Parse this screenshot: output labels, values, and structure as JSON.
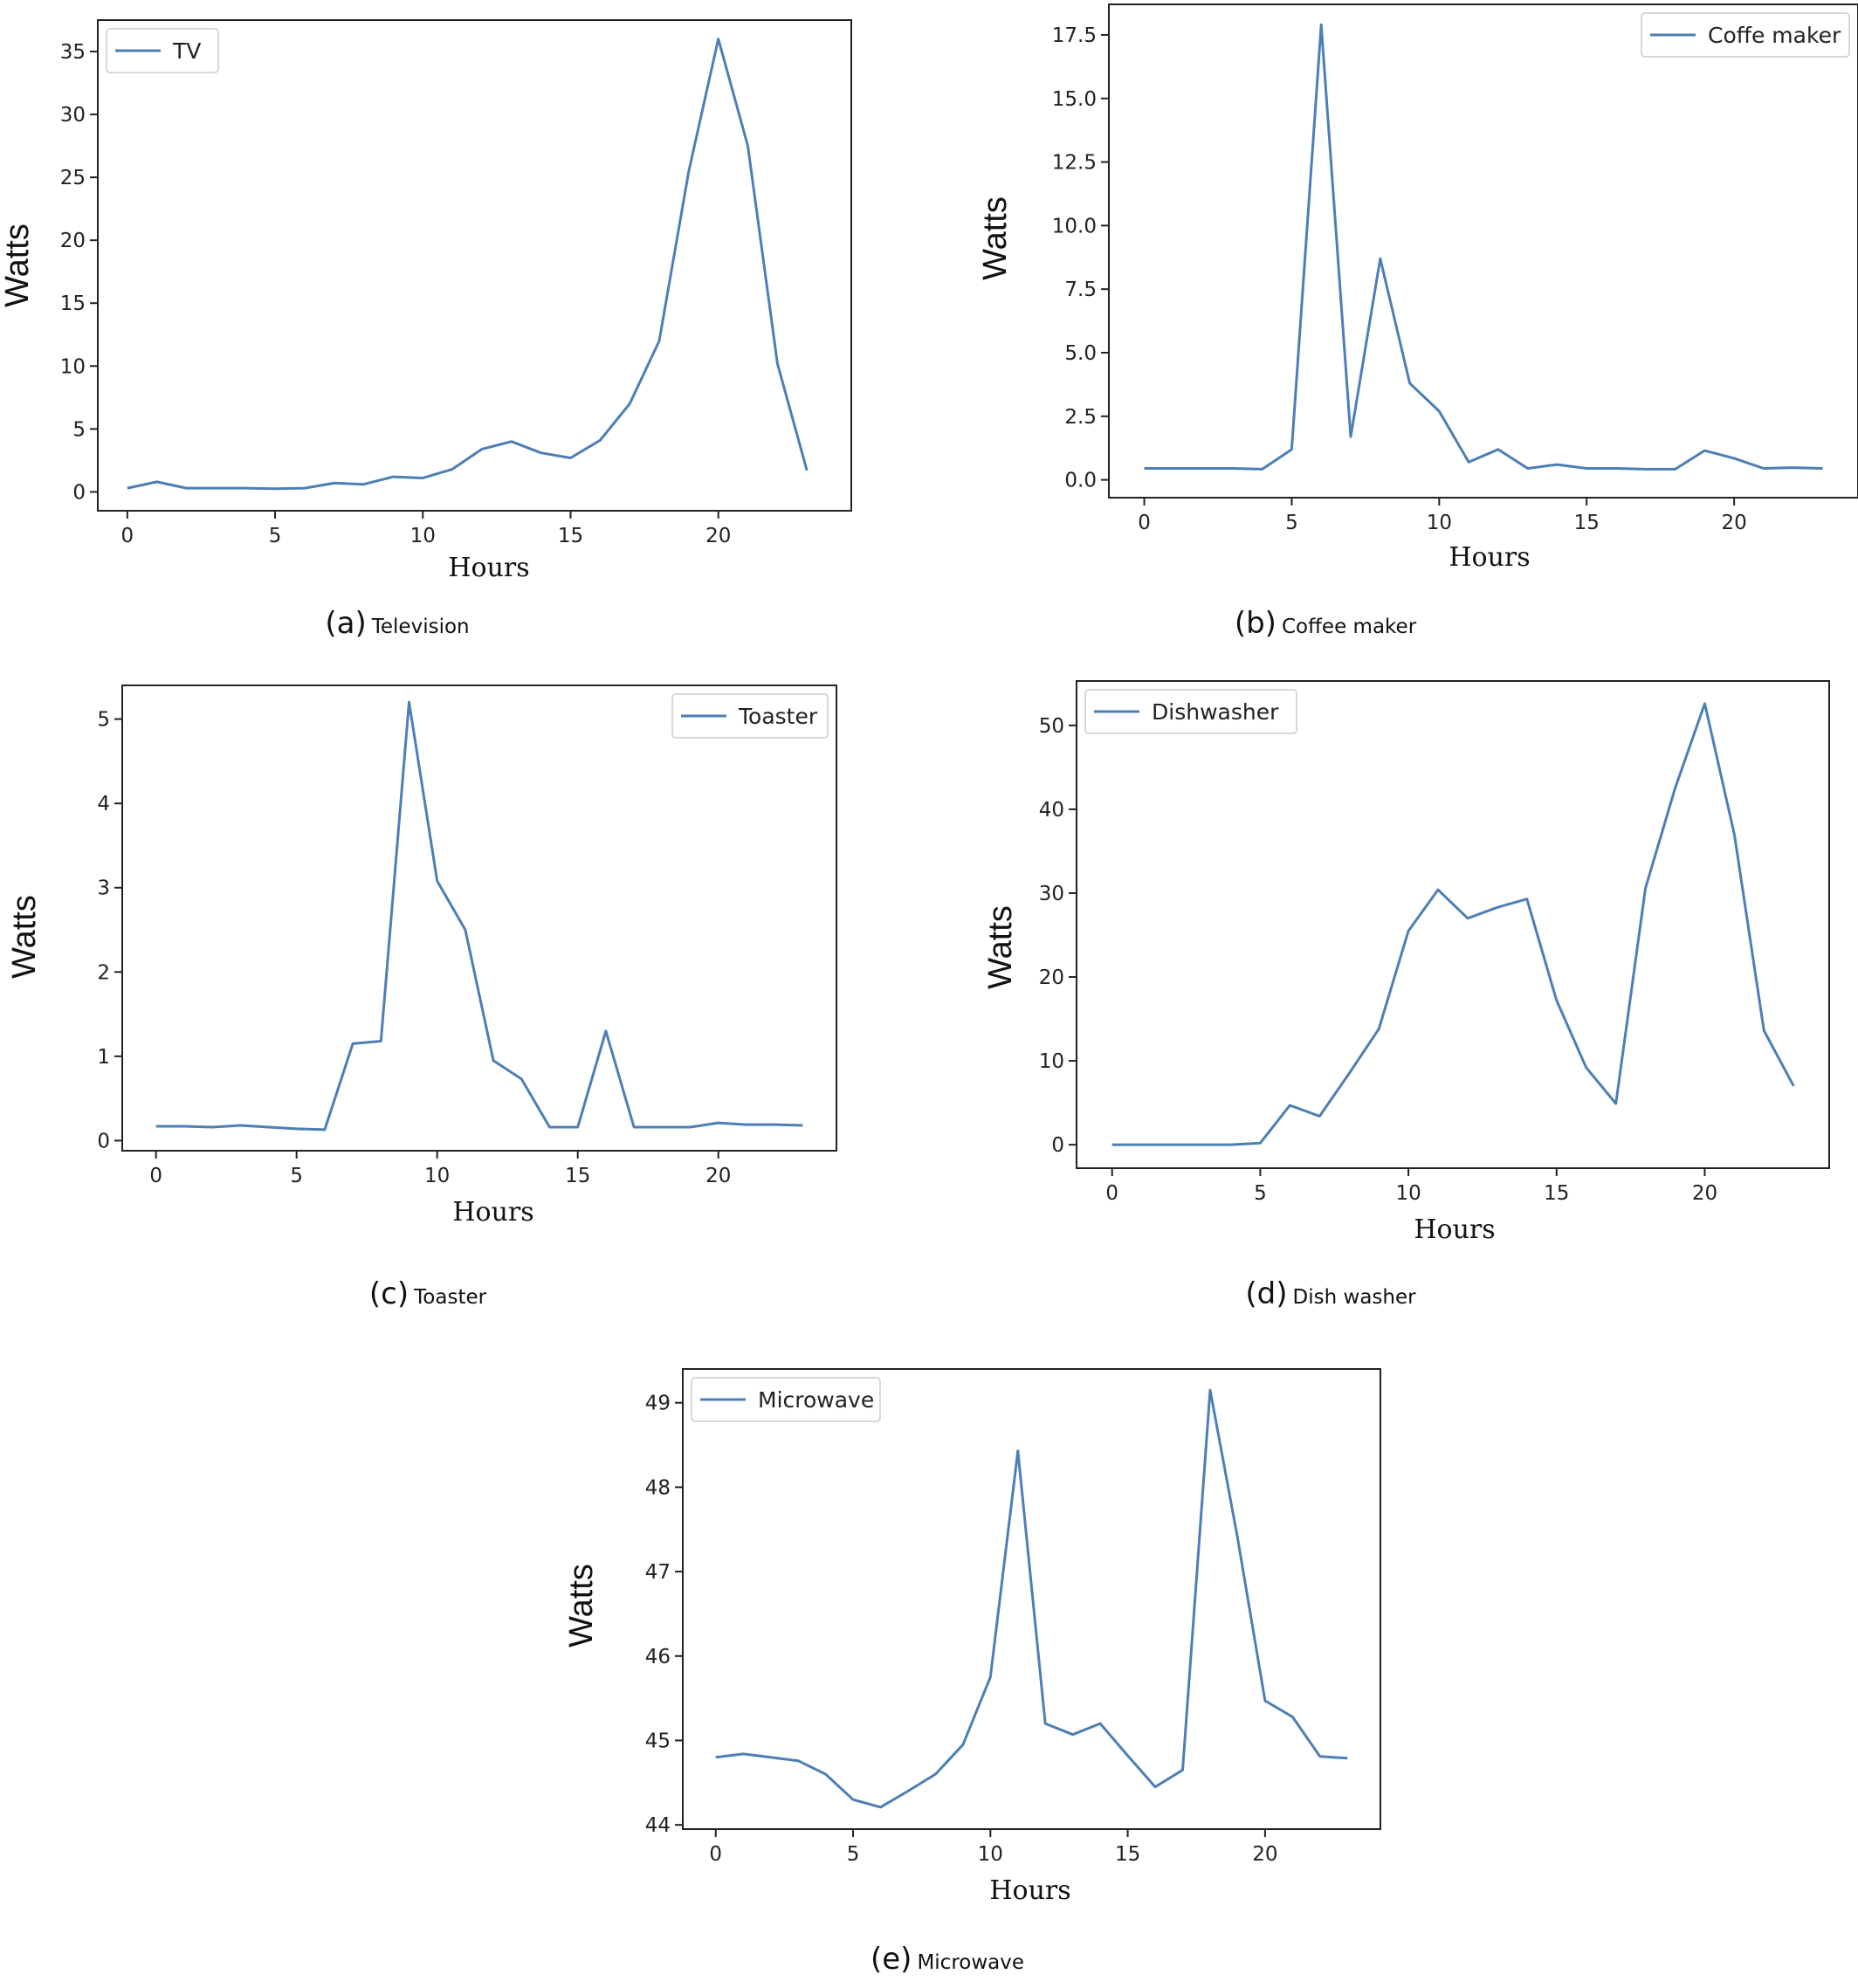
{
  "chart_data": [
    {
      "type": "line",
      "caption_label": "(a)",
      "caption_text": "Television",
      "xlabel": "Hours",
      "ylabel": "Watts",
      "xlim": [
        -1,
        24.5
      ],
      "ylim": [
        -1.5,
        37.5
      ],
      "xticks": [
        0,
        5,
        10,
        15,
        20
      ],
      "yticks": [
        0,
        5,
        10,
        15,
        20,
        25,
        30,
        35
      ],
      "ytick_labels": [
        "0",
        "5",
        "10",
        "15",
        "20",
        "25",
        "30",
        "35"
      ],
      "legend_position": "top-left",
      "series": [
        {
          "name": "TV",
          "color": "#4c7fb4",
          "x": [
            0,
            1,
            2,
            3,
            4,
            5,
            6,
            7,
            8,
            9,
            10,
            11,
            12,
            13,
            14,
            15,
            16,
            17,
            18,
            19,
            20,
            21,
            22,
            23
          ],
          "y": [
            0.3,
            0.8,
            0.3,
            0.3,
            0.3,
            0.25,
            0.3,
            0.7,
            0.6,
            1.2,
            1.1,
            1.8,
            3.4,
            4.0,
            3.1,
            2.7,
            4.1,
            7.0,
            12.0,
            25.5,
            36.0,
            27.5,
            10.2,
            1.7
          ]
        }
      ]
    },
    {
      "type": "line",
      "caption_label": "(b)",
      "caption_text": "Coffee maker",
      "xlabel": "Hours",
      "ylabel": "Watts",
      "xlim": [
        -1.2,
        24.2
      ],
      "ylim": [
        -0.7,
        18.7
      ],
      "xticks": [
        0,
        5,
        10,
        15,
        20
      ],
      "yticks": [
        0,
        2.5,
        5,
        7.5,
        10,
        12.5,
        15,
        17.5
      ],
      "ytick_labels": [
        "0.0",
        "2.5",
        "5.0",
        "7.5",
        "10.0",
        "12.5",
        "15.0",
        "17.5"
      ],
      "legend_position": "top-right",
      "series": [
        {
          "name": "Coffe maker",
          "color": "#4c7fb4",
          "x": [
            0,
            1,
            2,
            3,
            4,
            5,
            6,
            7,
            8,
            9,
            10,
            11,
            12,
            13,
            14,
            15,
            16,
            17,
            18,
            19,
            20,
            21,
            22,
            23
          ],
          "y": [
            0.45,
            0.45,
            0.45,
            0.45,
            0.42,
            1.2,
            17.9,
            1.7,
            8.7,
            3.8,
            2.7,
            0.7,
            1.2,
            0.45,
            0.6,
            0.45,
            0.45,
            0.42,
            0.42,
            1.15,
            0.85,
            0.45,
            0.48,
            0.45
          ]
        }
      ]
    },
    {
      "type": "line",
      "caption_label": "(c)",
      "caption_text": "Toaster",
      "xlabel": "Hours",
      "ylabel": "Watts",
      "xlim": [
        -1.2,
        24.2
      ],
      "ylim": [
        -0.12,
        5.4
      ],
      "xticks": [
        0,
        5,
        10,
        15,
        20
      ],
      "yticks": [
        0,
        1,
        2,
        3,
        4,
        5
      ],
      "ytick_labels": [
        "0",
        "1",
        "2",
        "3",
        "4",
        "5"
      ],
      "legend_position": "top-right",
      "series": [
        {
          "name": "Toaster",
          "color": "#4c7fb4",
          "x": [
            0,
            1,
            2,
            3,
            4,
            5,
            6,
            7,
            8,
            9,
            10,
            11,
            12,
            13,
            14,
            15,
            16,
            17,
            18,
            19,
            20,
            21,
            22,
            23
          ],
          "y": [
            0.17,
            0.17,
            0.16,
            0.18,
            0.16,
            0.14,
            0.13,
            1.15,
            1.18,
            5.2,
            3.08,
            2.5,
            0.95,
            0.73,
            0.16,
            0.16,
            1.3,
            0.16,
            0.16,
            0.16,
            0.21,
            0.19,
            0.19,
            0.18
          ]
        }
      ]
    },
    {
      "type": "line",
      "caption_label": "(d)",
      "caption_text": "Dish washer",
      "xlabel": "Hours",
      "ylabel": "Watts",
      "xlim": [
        -1.2,
        24.2
      ],
      "ylim": [
        -2.8,
        55.3
      ],
      "xticks": [
        0,
        5,
        10,
        15,
        20
      ],
      "yticks": [
        0,
        10,
        20,
        30,
        40,
        50
      ],
      "ytick_labels": [
        "0",
        "10",
        "20",
        "30",
        "40",
        "50"
      ],
      "legend_position": "top-left",
      "series": [
        {
          "name": "Dishwasher",
          "color": "#4c7fb4",
          "x": [
            0,
            1,
            2,
            3,
            4,
            5,
            6,
            7,
            8,
            9,
            10,
            11,
            12,
            13,
            14,
            15,
            16,
            17,
            18,
            19,
            20,
            21,
            22,
            23
          ],
          "y": [
            0,
            0,
            0,
            0,
            0,
            0.2,
            4.7,
            3.4,
            8.5,
            13.8,
            25.5,
            30.4,
            27.0,
            28.3,
            29.3,
            17.2,
            9.2,
            4.9,
            30.6,
            42.5,
            52.6,
            37.0,
            13.6,
            7.0
          ]
        }
      ]
    },
    {
      "type": "line",
      "caption_label": "(e)",
      "caption_text": "Microwave",
      "xlabel": "Hours",
      "ylabel": "Watts",
      "xlim": [
        -1.2,
        24.2
      ],
      "ylim": [
        43.95,
        49.4
      ],
      "xticks": [
        0,
        5,
        10,
        15,
        20
      ],
      "yticks": [
        44,
        45,
        46,
        47,
        48,
        49
      ],
      "ytick_labels": [
        "44",
        "45",
        "46",
        "47",
        "48",
        "49"
      ],
      "legend_position": "top-left",
      "series": [
        {
          "name": "Microwave",
          "color": "#4c7fb4",
          "x": [
            0,
            1,
            2,
            3,
            4,
            5,
            6,
            7,
            8,
            9,
            10,
            11,
            12,
            13,
            14,
            15,
            16,
            17,
            18,
            19,
            20,
            21,
            22,
            23
          ],
          "y": [
            44.8,
            44.84,
            44.8,
            44.76,
            44.6,
            44.3,
            44.21,
            44.4,
            44.6,
            44.95,
            45.75,
            48.43,
            45.2,
            45.07,
            45.2,
            44.82,
            44.45,
            44.65,
            49.15,
            47.4,
            45.47,
            45.28,
            44.81,
            44.79
          ]
        }
      ]
    }
  ]
}
